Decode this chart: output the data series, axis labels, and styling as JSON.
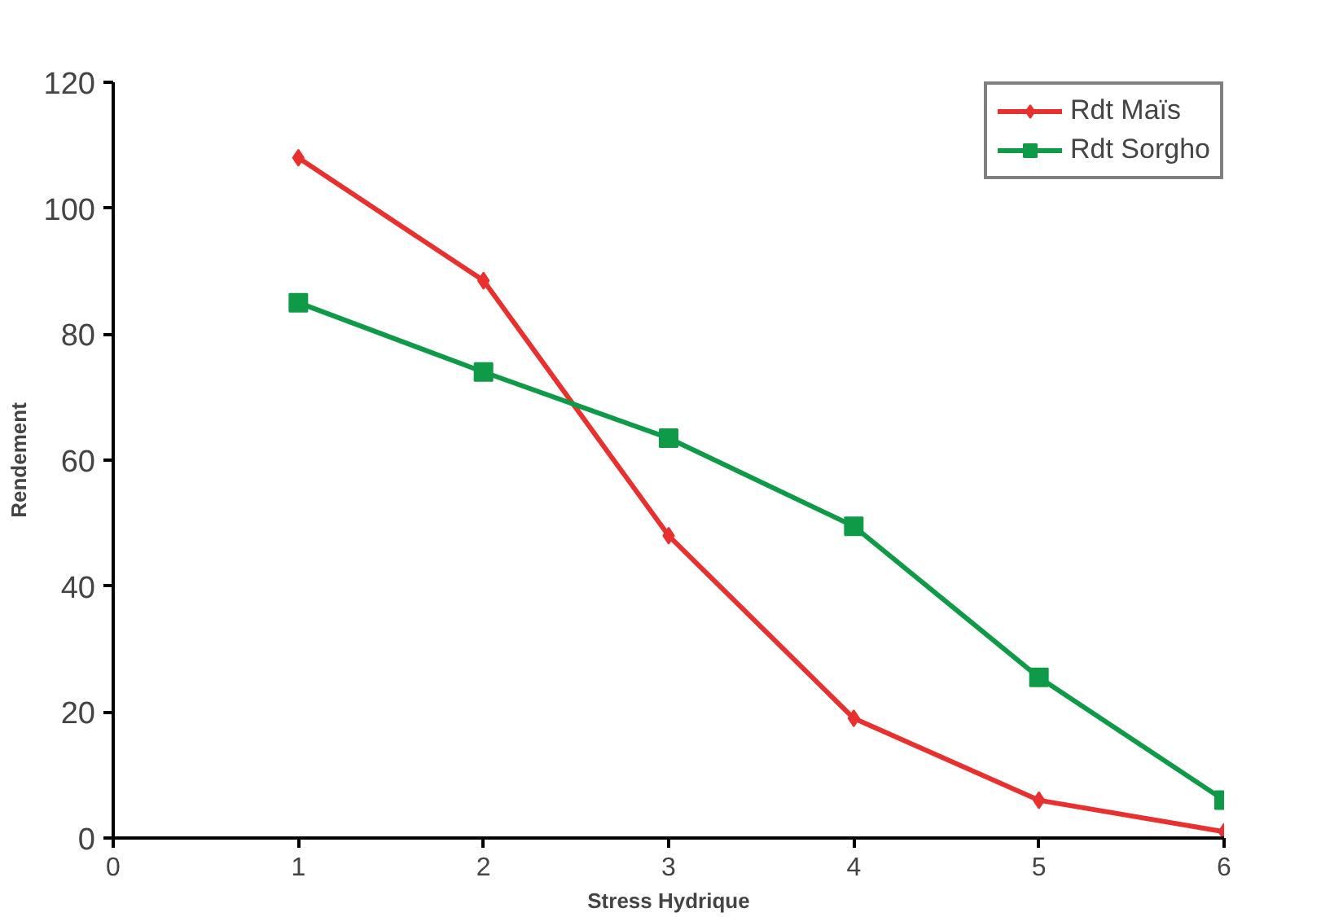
{
  "chart_data": {
    "type": "line",
    "xlabel": "Stress Hydrique",
    "ylabel": "Rendement",
    "x": [
      1,
      2,
      3,
      4,
      5,
      6
    ],
    "series": [
      {
        "name": "Rdt Maïs",
        "color": "#e8302f",
        "marker": "diamond",
        "values": [
          108,
          88.5,
          48,
          19,
          6,
          1
        ]
      },
      {
        "name": "Rdt Sorgho",
        "color": "#0f9a48",
        "marker": "square",
        "values": [
          85,
          74,
          63.5,
          49.5,
          25.5,
          6
        ]
      }
    ],
    "xlim": [
      0,
      6
    ],
    "ylim": [
      0,
      120
    ],
    "xticks": [
      0,
      1,
      2,
      3,
      4,
      5,
      6
    ],
    "yticks": [
      0,
      20,
      40,
      60,
      80,
      100,
      120
    ],
    "grid": false,
    "legend": "top right",
    "line_style": "solid"
  }
}
